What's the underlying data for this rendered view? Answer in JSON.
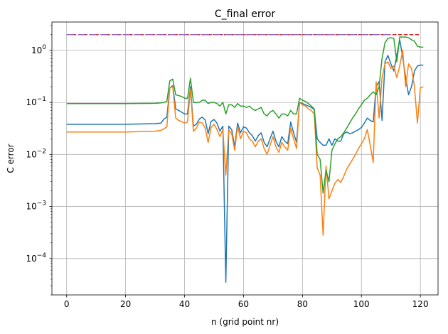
{
  "chart_data": {
    "type": "line",
    "title": "C_final error",
    "xlabel": "n (grid point nr)",
    "ylabel": "C error",
    "yscale": "log",
    "grid": true,
    "xlim": [
      -5,
      126
    ],
    "ylim": [
      2e-05,
      3.5
    ],
    "x_ticks": [
      0,
      20,
      40,
      60,
      80,
      100,
      120
    ],
    "x_tick_labels": [
      "0",
      "20",
      "40",
      "60",
      "80",
      "100",
      "120"
    ],
    "y_ticks": [
      0.0001,
      0.001,
      0.01,
      0.1,
      1
    ],
    "y_tick_labels": [
      {
        "base": "10",
        "exp": "−4"
      },
      {
        "base": "10",
        "exp": "−3"
      },
      {
        "base": "10",
        "exp": "−2"
      },
      {
        "base": "10",
        "exp": "−1"
      },
      {
        "base": "10",
        "exp": "0"
      }
    ],
    "colors": {
      "blue": "#1f77b4",
      "orange": "#ff7f0e",
      "green": "#2ca02c",
      "red": "#d62728",
      "purple": "#9467bd"
    },
    "series": [
      {
        "color": "#d62728",
        "style": "dashed",
        "x": [
          0,
          120
        ],
        "y": [
          2.0,
          2.0
        ]
      },
      {
        "color": "#9467bd",
        "style": "dashdot",
        "x": [
          0,
          110
        ],
        "y": [
          2.0,
          2.0
        ]
      },
      {
        "color": "#1f77b4",
        "style": "solid",
        "x": [
          0,
          10,
          20,
          30,
          32,
          33,
          34,
          35,
          36,
          37,
          38,
          39,
          40,
          41,
          42,
          43,
          44,
          45,
          46,
          47,
          48,
          49,
          50,
          51,
          52,
          53,
          54,
          55,
          56,
          57,
          58,
          59,
          60,
          61,
          62,
          63,
          64,
          65,
          66,
          67,
          68,
          69,
          70,
          71,
          72,
          73,
          74,
          75,
          76,
          77,
          78,
          79,
          80,
          81,
          82,
          83,
          84,
          85,
          86,
          87,
          88,
          89,
          90,
          91,
          92,
          93,
          94,
          95,
          96,
          97,
          98,
          99,
          100,
          101,
          102,
          103,
          104,
          105,
          106,
          107,
          108,
          109,
          110,
          111,
          112,
          113,
          114,
          115,
          116,
          117,
          118,
          119,
          120,
          121
        ],
        "y": [
          0.038,
          0.038,
          0.038,
          0.039,
          0.04,
          0.048,
          0.052,
          0.19,
          0.21,
          0.075,
          0.07,
          0.065,
          0.06,
          0.06,
          0.2,
          0.035,
          0.038,
          0.048,
          0.052,
          0.046,
          0.025,
          0.043,
          0.047,
          0.04,
          0.028,
          0.035,
          3.5e-05,
          0.035,
          0.03,
          0.014,
          0.04,
          0.026,
          0.034,
          0.032,
          0.026,
          0.023,
          0.018,
          0.023,
          0.026,
          0.017,
          0.014,
          0.02,
          0.028,
          0.018,
          0.014,
          0.022,
          0.018,
          0.016,
          0.042,
          0.026,
          0.017,
          0.1,
          0.095,
          0.09,
          0.085,
          0.08,
          0.073,
          0.02,
          0.017,
          0.015,
          0.015,
          0.02,
          0.015,
          0.02,
          0.018,
          0.018,
          0.025,
          0.027,
          0.025,
          0.026,
          0.028,
          0.03,
          0.033,
          0.04,
          0.05,
          0.045,
          0.042,
          0.2,
          0.25,
          0.045,
          0.6,
          0.8,
          0.55,
          0.4,
          0.8,
          1.6,
          0.75,
          0.3,
          0.14,
          0.2,
          0.4,
          0.5,
          0.52,
          0.52
        ]
      },
      {
        "color": "#ff7f0e",
        "style": "solid",
        "x": [
          0,
          10,
          20,
          30,
          32,
          33,
          34,
          35,
          36,
          37,
          38,
          39,
          40,
          41,
          42,
          43,
          44,
          45,
          46,
          47,
          48,
          49,
          50,
          51,
          52,
          53,
          54,
          55,
          56,
          57,
          58,
          59,
          60,
          61,
          62,
          63,
          64,
          65,
          66,
          67,
          68,
          69,
          70,
          71,
          72,
          73,
          74,
          75,
          76,
          77,
          78,
          79,
          80,
          81,
          82,
          83,
          84,
          85,
          86,
          87,
          88,
          89,
          90,
          91,
          92,
          93,
          94,
          95,
          96,
          97,
          98,
          99,
          100,
          101,
          102,
          103,
          104,
          105,
          106,
          107,
          108,
          109,
          110,
          111,
          112,
          113,
          114,
          115,
          116,
          117,
          118,
          119,
          120,
          121
        ],
        "y": [
          0.027,
          0.027,
          0.027,
          0.028,
          0.029,
          0.031,
          0.034,
          0.19,
          0.2,
          0.05,
          0.045,
          0.043,
          0.04,
          0.042,
          0.18,
          0.028,
          0.032,
          0.042,
          0.04,
          0.032,
          0.017,
          0.033,
          0.038,
          0.03,
          0.022,
          0.03,
          0.004,
          0.03,
          0.025,
          0.012,
          0.035,
          0.02,
          0.028,
          0.026,
          0.02,
          0.018,
          0.014,
          0.018,
          0.02,
          0.013,
          0.01,
          0.015,
          0.022,
          0.014,
          0.011,
          0.017,
          0.014,
          0.012,
          0.032,
          0.02,
          0.013,
          0.1,
          0.09,
          0.085,
          0.075,
          0.07,
          0.06,
          0.0055,
          0.004,
          0.00028,
          0.006,
          0.0014,
          0.002,
          0.0028,
          0.0033,
          0.0029,
          0.0038,
          0.0052,
          0.0065,
          0.008,
          0.01,
          0.013,
          0.016,
          0.02,
          0.03,
          0.015,
          0.007,
          0.25,
          0.05,
          0.3,
          0.55,
          0.6,
          0.45,
          0.5,
          0.3,
          0.5,
          1.0,
          0.2,
          0.55,
          0.45,
          0.2,
          0.04,
          0.19,
          0.2
        ]
      },
      {
        "color": "#2ca02c",
        "style": "solid",
        "x": [
          0,
          10,
          20,
          30,
          32,
          33,
          34,
          35,
          36,
          37,
          38,
          39,
          40,
          41,
          42,
          43,
          44,
          45,
          46,
          47,
          48,
          49,
          50,
          51,
          52,
          53,
          54,
          55,
          56,
          57,
          58,
          59,
          60,
          61,
          62,
          63,
          64,
          65,
          66,
          67,
          68,
          69,
          70,
          71,
          72,
          73,
          74,
          75,
          76,
          77,
          78,
          79,
          80,
          81,
          82,
          83,
          84,
          85,
          86,
          87,
          88,
          89,
          90,
          91,
          92,
          93,
          94,
          95,
          96,
          97,
          98,
          99,
          100,
          101,
          102,
          103,
          104,
          105,
          106,
          107,
          108,
          109,
          110,
          111,
          112,
          113,
          114,
          115,
          116,
          117,
          118,
          119,
          120,
          121
        ],
        "y": [
          0.095,
          0.095,
          0.095,
          0.096,
          0.098,
          0.1,
          0.105,
          0.26,
          0.28,
          0.14,
          0.135,
          0.13,
          0.12,
          0.12,
          0.29,
          0.1,
          0.1,
          0.1,
          0.11,
          0.11,
          0.095,
          0.1,
          0.1,
          0.095,
          0.085,
          0.1,
          0.06,
          0.09,
          0.09,
          0.08,
          0.095,
          0.085,
          0.085,
          0.08,
          0.085,
          0.075,
          0.07,
          0.075,
          0.08,
          0.06,
          0.055,
          0.065,
          0.07,
          0.06,
          0.05,
          0.06,
          0.06,
          0.055,
          0.07,
          0.06,
          0.06,
          0.12,
          0.11,
          0.105,
          0.095,
          0.085,
          0.075,
          0.01,
          0.008,
          0.0018,
          0.005,
          0.003,
          0.012,
          0.016,
          0.02,
          0.022,
          0.026,
          0.032,
          0.04,
          0.05,
          0.06,
          0.075,
          0.09,
          0.11,
          0.12,
          0.14,
          0.16,
          0.14,
          0.2,
          0.7,
          1.4,
          1.7,
          1.75,
          1.7,
          0.6,
          1.8,
          1.8,
          1.8,
          1.75,
          1.6,
          1.5,
          1.2,
          1.15,
          1.15
        ]
      }
    ]
  }
}
